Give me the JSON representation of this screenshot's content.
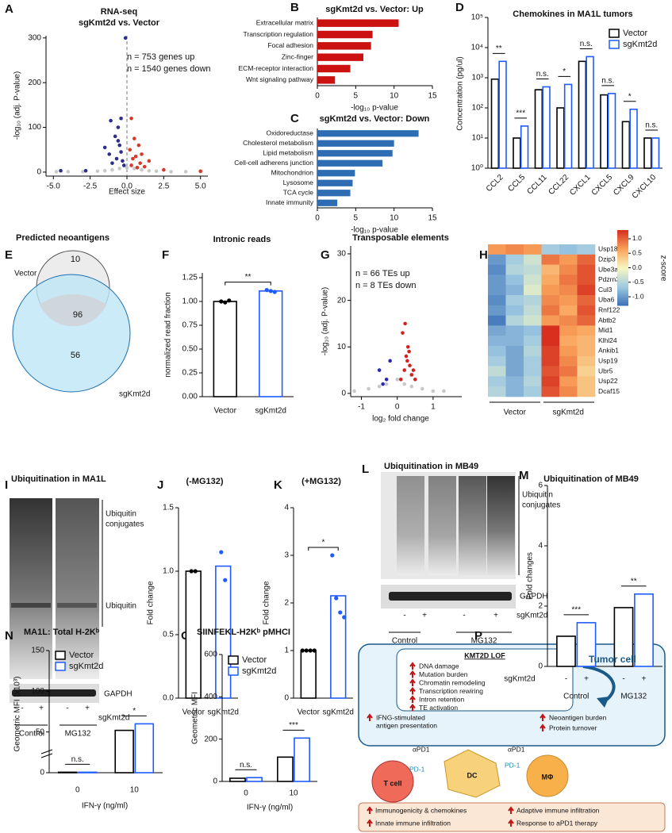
{
  "panel_labels": [
    "A",
    "B",
    "C",
    "D",
    "E",
    "F",
    "G",
    "H",
    "I",
    "J",
    "K",
    "L",
    "M",
    "N",
    "O",
    "P"
  ],
  "chart_data": [
    {
      "type": "scatter",
      "title": "RNA-seq",
      "subtitle": "sgKmt2d vs. Vector",
      "xlabel": "Effect size",
      "ylabel": "-log₁₀ (adj. P-value)",
      "xlim": [
        -5.5,
        5.5
      ],
      "ylim": [
        -9,
        305
      ],
      "xticks": [
        {
          "value": -5,
          "label": "-5.0"
        },
        -2.5,
        {
          "value": 0,
          "label": "0.0"
        },
        2.5,
        {
          "value": 5,
          "label": "5.0"
        }
      ],
      "yticks": [
        0,
        100,
        200,
        300
      ],
      "vline": 0,
      "annotations": [
        {
          "text": "n = 753 genes up",
          "color": "#d62020"
        },
        {
          "text": "n = 1540 genes down",
          "color": "#2a2ab0"
        }
      ],
      "series": [
        {
          "color": "#c8c8c8",
          "x": [
            -4.8,
            -4,
            -3,
            -2,
            -1.5,
            -1,
            -0.5,
            0,
            0.5,
            1,
            1.5,
            2,
            3,
            4,
            5
          ],
          "y": [
            1,
            1,
            1,
            2,
            3,
            5,
            8,
            10,
            8,
            5,
            3,
            2,
            1,
            1,
            1
          ]
        },
        {
          "color": "#2e2e8a",
          "x": [
            -0.1,
            -1.1,
            -0.8,
            -0.6,
            -1.5,
            -0.5,
            -0.4,
            -1.2,
            -0.7,
            -0.3,
            -0.2,
            -2.8,
            -4.5,
            -1.0,
            -0.6,
            -0.4
          ],
          "y": [
            300,
            115,
            80,
            100,
            55,
            60,
            45,
            40,
            30,
            25,
            15,
            3,
            3,
            20,
            70,
            120
          ]
        },
        {
          "color": "#d63a2a",
          "x": [
            0.3,
            0.5,
            0.8,
            0.2,
            1.0,
            0.6,
            0.4,
            1.5,
            0.9,
            0.3,
            0.7,
            2.5,
            5.0,
            1.2
          ],
          "y": [
            120,
            75,
            60,
            50,
            40,
            35,
            30,
            25,
            20,
            15,
            10,
            5,
            2,
            12
          ]
        }
      ]
    },
    {
      "type": "bar",
      "orientation": "horizontal",
      "title": "sgKmt2d vs. Vector: Up",
      "xlabel": "-log₁₀ p-value",
      "categories": [
        "Extracellular matrix",
        "Transcription regulation",
        "Focal adhesion",
        "Zinc-finger",
        "ECM-receptor interaction",
        "Wnt signaling pathway"
      ],
      "values": [
        10.6,
        7.2,
        7.0,
        6.0,
        4.3,
        2.3
      ],
      "color": "#cc1111",
      "xlim": [
        0,
        15
      ],
      "xticks": [
        0,
        5,
        10,
        15
      ]
    },
    {
      "type": "bar",
      "orientation": "horizontal",
      "title": "sgKmt2d vs. Vector: Down",
      "xlabel": "-log₁₀ p-value",
      "categories": [
        "Oxidoreductase",
        "Cholesterol metabolism",
        "Lipid metabolism",
        "Cell-cell adherens junction",
        "Mitochondrion",
        "Lysosome",
        "TCA cycle",
        "Innate immunity"
      ],
      "values": [
        13.2,
        10.0,
        9.8,
        8.5,
        4.9,
        4.6,
        4.3,
        2.6
      ],
      "color": "#2e6db4",
      "xlim": [
        0,
        15
      ],
      "xticks": [
        0,
        5,
        10,
        15
      ]
    },
    {
      "type": "bar",
      "title": "Chemokines in MA1L tumors",
      "ylabel": "Concentration (pg/ul)",
      "yscale": "log",
      "ylim": [
        1,
        100000
      ],
      "yticks": [
        {
          "value": 1,
          "label": "10⁰"
        },
        {
          "value": 10,
          "label": "10¹"
        },
        {
          "value": 100,
          "label": "10²"
        },
        {
          "value": 1000,
          "label": "10³"
        },
        {
          "value": 10000,
          "label": "10⁴"
        },
        {
          "value": 100000,
          "label": "10⁵"
        }
      ],
      "categories": [
        "CCL2",
        "CCL5",
        "CCL11",
        "CCL22",
        "CXCL1",
        "CXCL5",
        "CXCL9",
        "CXCL10"
      ],
      "series": [
        {
          "name": "Vector",
          "color": "#000000",
          "values": [
            900,
            10,
            400,
            100,
            3500,
            270,
            35,
            10
          ]
        },
        {
          "name": "sgKmt2d",
          "color": "#1f5bff",
          "values": [
            3500,
            25,
            500,
            600,
            5000,
            300,
            90,
            10
          ]
        }
      ],
      "significance": [
        "**",
        "***",
        "n.s.",
        "*",
        "n.s.",
        "n.s.",
        "*",
        "n.s."
      ],
      "legend": "upper right"
    },
    {
      "type": "bar",
      "title": "Intronic reads",
      "ylabel": "normalized read fraction",
      "categories": [
        "Vector",
        "sgKmt2d"
      ],
      "values": [
        1.0,
        1.11
      ],
      "colors": [
        "#000000",
        "#1f5bff"
      ],
      "points": [
        [
          1.0,
          0.99,
          1.01
        ],
        [
          1.12,
          1.11,
          1.1
        ]
      ],
      "ylim": [
        0,
        1.3
      ],
      "yticks": [
        {
          "value": 0,
          "label": "0.00"
        },
        0.25,
        {
          "value": 0.5,
          "label": "0.50"
        },
        0.75,
        {
          "value": 1,
          "label": "1.00"
        },
        1.25
      ],
      "significance": "**"
    },
    {
      "type": "scatter",
      "title": "Transposable elements",
      "xlabel": "log₂ fold change",
      "ylabel": "-log₁₀ (adj. P-value)",
      "xlim": [
        -1.3,
        1.8
      ],
      "ylim": [
        -0.7,
        31.7
      ],
      "xticks": [
        -1,
        0,
        1
      ],
      "yticks": [
        0,
        10,
        20,
        30
      ],
      "annotations": [
        {
          "text": "n = 66 TEs up",
          "color": "#c0141c"
        },
        {
          "text": "n = 8 TEs down",
          "color": "#1c2fb0"
        }
      ],
      "series": [
        {
          "color": "#c8c8c8",
          "x": [
            -1.2,
            -0.8,
            -0.5,
            -0.3,
            0,
            0.2,
            0.4,
            0.7,
            1.0,
            1.3
          ],
          "y": [
            0.5,
            1,
            1.5,
            2,
            3,
            2,
            1.5,
            1,
            0.5,
            0.5
          ]
        },
        {
          "color": "#d62020",
          "x": [
            0.1,
            0.2,
            0.25,
            0.3,
            0.35,
            0.4,
            0.15,
            0.5,
            0.22,
            0.28,
            0.33,
            0.45
          ],
          "y": [
            3,
            5,
            8,
            10,
            6,
            4,
            13,
            3,
            15,
            7,
            9,
            5
          ]
        },
        {
          "color": "#2a2ab0",
          "x": [
            -0.5,
            -0.3,
            -0.2,
            -0.4
          ],
          "y": [
            5,
            3,
            7,
            2
          ]
        }
      ]
    },
    {
      "type": "heatmap",
      "rows": [
        "Usp18",
        "Dzip3",
        "Ube3a",
        "Pdzrn3",
        "Cul3",
        "Uba6",
        "Rnf122",
        "Abtb2",
        "Mid1",
        "Klhl24",
        "Ankib1",
        "Usp19",
        "Ubr5",
        "Usp22",
        "Dcaf15"
      ],
      "groups": [
        "Vector",
        "sgKmt2d"
      ],
      "values": [
        [
          0.7,
          0.8,
          0.7,
          -0.6,
          -0.7,
          -0.6
        ],
        [
          -1.0,
          -0.6,
          -0.3,
          0.9,
          0.7,
          1.0
        ],
        [
          -1.1,
          -0.5,
          -0.4,
          0.5,
          0.8,
          1.1
        ],
        [
          -1.0,
          -0.7,
          -0.3,
          0.6,
          0.9,
          1.1
        ],
        [
          -1.0,
          -0.8,
          -0.2,
          0.7,
          0.8,
          1.2
        ],
        [
          -1.1,
          -0.6,
          -0.5,
          0.8,
          0.7,
          1.0
        ],
        [
          -1.0,
          -0.7,
          -0.4,
          0.9,
          0.6,
          1.1
        ],
        [
          -1.2,
          -0.5,
          -0.3,
          0.7,
          0.8,
          1.0
        ],
        [
          -0.9,
          -0.8,
          -0.7,
          1.3,
          0.7,
          0.6
        ],
        [
          -0.8,
          -0.8,
          -0.6,
          1.3,
          0.6,
          0.5
        ],
        [
          -0.7,
          -0.9,
          -0.5,
          1.2,
          0.7,
          0.5
        ],
        [
          -0.6,
          -0.9,
          -0.6,
          1.2,
          0.8,
          0.4
        ],
        [
          -0.4,
          -0.9,
          -0.6,
          1.1,
          0.9,
          0.3
        ],
        [
          -0.6,
          -0.8,
          -0.5,
          1.2,
          0.7,
          0.4
        ],
        [
          -0.5,
          -0.8,
          -0.6,
          1.1,
          0.8,
          0.4
        ]
      ],
      "clim": [
        -1.3,
        1.3
      ],
      "colorbar_label": "z-score",
      "colorbar_ticks": [
        {
          "value": 1,
          "label": "1.0"
        },
        0.5,
        {
          "value": 0,
          "label": "0.0"
        },
        -0.5,
        {
          "value": -1,
          "label": "-1.0"
        }
      ]
    },
    {
      "type": "bar",
      "title": "(-MG132)",
      "ylabel": "Fold change",
      "categories": [
        "Vector",
        "sgKmt2d"
      ],
      "values": [
        1.0,
        1.04
      ],
      "colors": [
        "#000000",
        "#1f5bff"
      ],
      "points": [
        [
          1,
          1
        ],
        [
          1.15,
          0.93
        ]
      ],
      "ylim": [
        0,
        1.5
      ],
      "yticks": [
        {
          "value": 0,
          "label": "0.0"
        },
        0.5,
        {
          "value": 1,
          "label": "1.0"
        },
        1.5
      ]
    },
    {
      "type": "bar",
      "title": "(+MG132)",
      "ylabel": "Fold change",
      "categories": [
        "Vector",
        "sgKmt2d"
      ],
      "values": [
        1.0,
        2.15
      ],
      "colors": [
        "#000000",
        "#1f5bff"
      ],
      "points": [
        [
          1,
          1,
          1,
          1
        ],
        [
          3.0,
          2.1,
          1.8,
          1.7
        ]
      ],
      "ylim": [
        0,
        4
      ],
      "yticks": [
        0,
        1,
        2,
        3,
        4
      ],
      "significance": "*"
    },
    {
      "type": "bar",
      "title": "Ubiquitination of MB49",
      "ylabel": "Fold changes",
      "categories": [
        "Control",
        "MG132"
      ],
      "series": [
        {
          "color": "#000000",
          "values": [
            1.0,
            1.95
          ]
        },
        {
          "color": "#1f5bff",
          "values": [
            1.45,
            2.4
          ]
        }
      ],
      "sub_labels": [
        "-",
        "+"
      ],
      "sub_label_title": "sgKmt2d",
      "ylim": [
        0,
        6
      ],
      "yticks": [
        0,
        2,
        4,
        6
      ],
      "significance": [
        "***",
        "**"
      ]
    },
    {
      "type": "bar",
      "title": "MA1L: Total H-2Kᵇ",
      "ylabel": "Geometric MFI (x10³)",
      "xlabel": "IFN-γ (ng/ml)",
      "categories": [
        "0",
        "10"
      ],
      "series": [
        {
          "name": "Vector",
          "color": "#000000",
          "values": [
            0.6,
            52
          ]
        },
        {
          "name": "sgKmt2d",
          "color": "#1f5bff",
          "values": [
            0.6,
            60
          ]
        }
      ],
      "ylim": [
        0,
        150
      ],
      "yticks": [
        0,
        50,
        100,
        150
      ],
      "significance": [
        "n.s.",
        "*"
      ],
      "legend": "upper left"
    },
    {
      "type": "bar",
      "title": "SIINFEKL-H2Kᵇ pMHCI",
      "ylabel": "Geometric MFI",
      "xlabel": "IFN-γ (ng/ml)",
      "categories": [
        "0",
        "10"
      ],
      "series": [
        {
          "name": "Vector",
          "color": "#000000",
          "values": [
            15,
            115
          ]
        },
        {
          "name": "sgKmt2d",
          "color": "#1f5bff",
          "values": [
            18,
            205
          ]
        }
      ],
      "ylim": [
        0,
        600
      ],
      "yticks": [
        0,
        200,
        400,
        600
      ],
      "significance": [
        "n.s.",
        "***"
      ],
      "legend": "upper left"
    }
  ],
  "venn": {
    "title": "Predicted neoantigens",
    "sets": [
      "Vector",
      "sgKmt2d"
    ],
    "counts": [
      10,
      96,
      56
    ]
  },
  "blot_I": {
    "title": "Ubiquitination in MA1L",
    "conjugates": [
      "Ubiquitin",
      "conjugates"
    ],
    "band": "Ubiquitin",
    "loading": "GAPDH",
    "signs": [
      "-",
      "+",
      "-",
      "+"
    ],
    "row_label": "sgKmt2d",
    "groups": [
      "Control",
      "MG132"
    ]
  },
  "blot_L": {
    "title": "Ubiquitination in MB49",
    "conjugates": [
      "Ubiquitin",
      "conjugates"
    ],
    "loading": "GAPDH",
    "signs": [
      "-",
      "+",
      "-",
      "+"
    ],
    "row_label": "sgKmt2d",
    "groups": [
      "Control",
      "MG132"
    ]
  },
  "diagram": {
    "box_title": "KMT2D LOF",
    "cell": "Tumor cell",
    "effects": [
      "DNA damage",
      "Mutation burden",
      "Chromatin remodeling",
      "Transcription rewiring",
      "Intron retention",
      "TE activation"
    ],
    "outcomes": [
      "IFNG-stimulated",
      "antigen presentation",
      "Neoantigen burden",
      "Protein turnover"
    ],
    "cells": [
      "T cell",
      "DC",
      "MΦ"
    ],
    "drugs": [
      "αPD1",
      "αPD1"
    ],
    "receptors": [
      "PD-1",
      "PD-1"
    ],
    "results": [
      "Immunogenicity & chemokines",
      "Adaptive immune infiltration",
      "Innate immune infiltration",
      "Response to aPD1 therapy"
    ]
  }
}
